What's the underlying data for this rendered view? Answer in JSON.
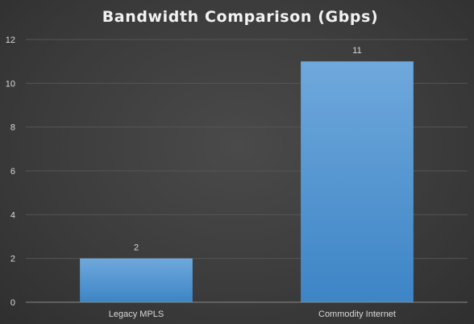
{
  "chart_data": {
    "type": "bar",
    "title": "Bandwidth Comparison (Gbps)",
    "categories": [
      "Legacy MPLS",
      "Commodity Internet"
    ],
    "values": [
      2,
      11
    ],
    "data_labels": [
      "2",
      "11"
    ],
    "ylim": [
      0,
      12
    ],
    "yticks": [
      "0",
      "2",
      "4",
      "6",
      "8",
      "10",
      "12"
    ],
    "xlabel": "",
    "ylabel": "",
    "grid": true,
    "legend": "none",
    "colors": {
      "bar_top": "#6fa8dc",
      "bar_bottom": "#3d85c6",
      "background": "#404040"
    }
  }
}
